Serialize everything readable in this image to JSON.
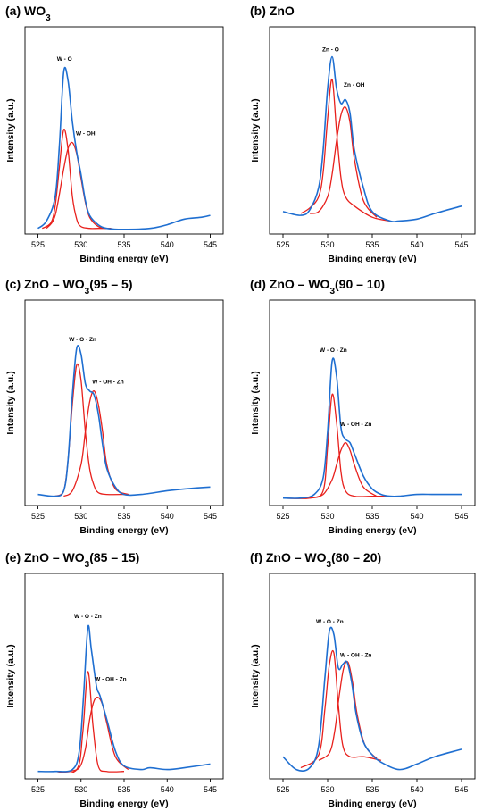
{
  "colors": {
    "envelope": "#1f6fd1",
    "component": "#e8201c",
    "axis": "#000000"
  },
  "chart_data": [
    {
      "type": "line",
      "title_main": "(a) WO",
      "title_sub": "3",
      "title_tail": "",
      "xlabel": "Binding energy (eV)",
      "ylabel": "Intensity (a.u.)",
      "xlim": [
        523.5,
        546.5
      ],
      "ylim": [
        0,
        1
      ],
      "xticks": [
        525,
        530,
        535,
        540,
        545
      ],
      "series": [
        {
          "color": "#1f6fd1",
          "x": [
            525,
            526,
            527,
            527.5,
            528,
            528.5,
            529,
            529.5,
            530,
            530.5,
            531,
            532,
            533,
            535,
            538,
            540,
            542,
            544,
            545
          ],
          "y": [
            0.03,
            0.07,
            0.2,
            0.48,
            0.87,
            0.82,
            0.6,
            0.44,
            0.32,
            0.18,
            0.1,
            0.05,
            0.03,
            0.025,
            0.03,
            0.05,
            0.08,
            0.09,
            0.1
          ]
        },
        {
          "color": "#e8201c",
          "x": [
            525.5,
            526.5,
            527,
            527.5,
            528,
            528.5,
            529,
            529.5,
            530,
            531,
            532,
            533.5
          ],
          "y": [
            0.03,
            0.06,
            0.15,
            0.36,
            0.56,
            0.45,
            0.2,
            0.08,
            0.04,
            0.03,
            0.03,
            0.03
          ]
        },
        {
          "color": "#e8201c",
          "x": [
            526,
            527,
            528,
            528.5,
            529,
            529.5,
            530,
            530.5,
            531,
            532,
            533
          ],
          "y": [
            0.03,
            0.1,
            0.35,
            0.46,
            0.49,
            0.43,
            0.3,
            0.17,
            0.09,
            0.04,
            0.03
          ]
        }
      ],
      "annotations": [
        {
          "text": "W - O",
          "x": 527.2,
          "y": 0.93
        },
        {
          "text": "W - OH",
          "x": 529.4,
          "y": 0.53
        }
      ]
    },
    {
      "type": "line",
      "title_main": "(b) ZnO",
      "title_sub": "",
      "title_tail": "",
      "xlabel": "Binding energy (eV)",
      "ylabel": "Intensity (a.u.)",
      "xlim": [
        523.5,
        546.5
      ],
      "ylim": [
        0,
        1
      ],
      "xticks": [
        525,
        530,
        535,
        540,
        545
      ],
      "series": [
        {
          "color": "#1f6fd1",
          "x": [
            525,
            527,
            528,
            529,
            529.5,
            530,
            530.5,
            531,
            531.5,
            532,
            532.5,
            533,
            534,
            535,
            537,
            538,
            540,
            542,
            545
          ],
          "y": [
            0.12,
            0.1,
            0.13,
            0.25,
            0.45,
            0.78,
            0.95,
            0.78,
            0.7,
            0.72,
            0.65,
            0.45,
            0.25,
            0.12,
            0.07,
            0.07,
            0.08,
            0.11,
            0.15
          ]
        },
        {
          "color": "#e8201c",
          "x": [
            527,
            528,
            529,
            529.5,
            530,
            530.5,
            531,
            531.5,
            532,
            533,
            535,
            537
          ],
          "y": [
            0.11,
            0.14,
            0.2,
            0.33,
            0.62,
            0.83,
            0.55,
            0.3,
            0.2,
            0.15,
            0.09,
            0.07
          ]
        },
        {
          "color": "#e8201c",
          "x": [
            528,
            529,
            530,
            530.5,
            531,
            531.5,
            532,
            532.5,
            533,
            534,
            535.5
          ],
          "y": [
            0.11,
            0.12,
            0.2,
            0.32,
            0.5,
            0.64,
            0.68,
            0.6,
            0.4,
            0.18,
            0.09
          ]
        }
      ],
      "annotations": [
        {
          "text": "Zn - O",
          "x": 529.4,
          "y": 0.98
        },
        {
          "text": "Zn - OH",
          "x": 531.8,
          "y": 0.79
        }
      ]
    },
    {
      "type": "line",
      "title_main": "(c) ZnO – WO",
      "title_sub": "3",
      "title_tail": "(95 – 5)",
      "xlabel": "Binding energy (eV)",
      "ylabel": "Intensity (a.u.)",
      "xlim": [
        523.5,
        546.5
      ],
      "ylim": [
        0,
        1
      ],
      "xticks": [
        525,
        530,
        535,
        540,
        545
      ],
      "series": [
        {
          "color": "#1f6fd1",
          "x": [
            525,
            527,
            528,
            528.5,
            529,
            529.5,
            530,
            530.5,
            531,
            531.5,
            532,
            532.5,
            533,
            534,
            535,
            537,
            540,
            542,
            545
          ],
          "y": [
            0.06,
            0.05,
            0.08,
            0.25,
            0.6,
            0.85,
            0.82,
            0.66,
            0.62,
            0.6,
            0.5,
            0.33,
            0.2,
            0.1,
            0.06,
            0.06,
            0.08,
            0.09,
            0.1
          ]
        },
        {
          "color": "#e8201c",
          "x": [
            527,
            528,
            528.5,
            529,
            529.5,
            530,
            530.5,
            531,
            531.5,
            532,
            533,
            535
          ],
          "y": [
            0.05,
            0.08,
            0.25,
            0.55,
            0.76,
            0.68,
            0.4,
            0.2,
            0.11,
            0.07,
            0.06,
            0.06
          ]
        },
        {
          "color": "#e8201c",
          "x": [
            528,
            529,
            530,
            530.5,
            531,
            531.5,
            532,
            532.5,
            533,
            534,
            535.5
          ],
          "y": [
            0.05,
            0.08,
            0.22,
            0.4,
            0.56,
            0.62,
            0.55,
            0.4,
            0.22,
            0.09,
            0.06
          ]
        }
      ],
      "annotations": [
        {
          "text": "W - O - Zn",
          "x": 528.6,
          "y": 0.89
        },
        {
          "text": "W - OH - Zn",
          "x": 531.3,
          "y": 0.66
        }
      ]
    },
    {
      "type": "line",
      "title_main": "(d) ZnO – WO",
      "title_sub": "3",
      "title_tail": "(90 – 10)",
      "xlabel": "Binding energy (eV)",
      "ylabel": "Intensity (a.u.)",
      "xlim": [
        523.5,
        546.5
      ],
      "ylim": [
        0,
        1
      ],
      "xticks": [
        525,
        530,
        535,
        540,
        545
      ],
      "series": [
        {
          "color": "#1f6fd1",
          "x": [
            525,
            527,
            528.5,
            529.5,
            530,
            530.5,
            531,
            531.5,
            532,
            532.5,
            533,
            534,
            535,
            536,
            537,
            538,
            540,
            542,
            545
          ],
          "y": [
            0.04,
            0.04,
            0.06,
            0.15,
            0.4,
            0.78,
            0.7,
            0.42,
            0.36,
            0.34,
            0.28,
            0.16,
            0.09,
            0.06,
            0.05,
            0.05,
            0.06,
            0.06,
            0.06
          ]
        },
        {
          "color": "#e8201c",
          "x": [
            525,
            528,
            529.5,
            530,
            530.5,
            531,
            531.5,
            532,
            533,
            535,
            537
          ],
          "y": [
            0.04,
            0.04,
            0.08,
            0.32,
            0.6,
            0.45,
            0.18,
            0.08,
            0.05,
            0.05,
            0.05
          ]
        },
        {
          "color": "#e8201c",
          "x": [
            528,
            529.5,
            530.5,
            531,
            531.5,
            532,
            532.5,
            533,
            534,
            535.5
          ],
          "y": [
            0.04,
            0.06,
            0.14,
            0.22,
            0.3,
            0.34,
            0.3,
            0.22,
            0.1,
            0.05
          ]
        }
      ],
      "annotations": [
        {
          "text": "W - O - Zn",
          "x": 529.1,
          "y": 0.83
        },
        {
          "text": "W - OH - Zn",
          "x": 531.4,
          "y": 0.43
        }
      ]
    },
    {
      "type": "line",
      "title_main": "(e) ZnO – WO",
      "title_sub": "3",
      "title_tail": "(85 – 15)",
      "xlabel": "Binding energy (eV)",
      "ylabel": "Intensity (a.u.)",
      "xlim": [
        523.5,
        546.5
      ],
      "ylim": [
        0,
        1
      ],
      "xticks": [
        525,
        530,
        535,
        540,
        545
      ],
      "series": [
        {
          "color": "#1f6fd1",
          "x": [
            525,
            527,
            529,
            529.8,
            530.3,
            530.8,
            531.2,
            531.8,
            532.2,
            533,
            534,
            535,
            537,
            538,
            540,
            542,
            545
          ],
          "y": [
            0.04,
            0.04,
            0.05,
            0.15,
            0.45,
            0.82,
            0.7,
            0.5,
            0.45,
            0.32,
            0.15,
            0.07,
            0.05,
            0.06,
            0.05,
            0.06,
            0.08
          ]
        },
        {
          "color": "#e8201c",
          "x": [
            527,
            529.5,
            530.2,
            530.8,
            531.4,
            532,
            533,
            535
          ],
          "y": [
            0.04,
            0.05,
            0.25,
            0.58,
            0.28,
            0.07,
            0.04,
            0.04
          ]
        },
        {
          "color": "#e8201c",
          "x": [
            528.5,
            529.8,
            530.5,
            531,
            531.5,
            532,
            532.5,
            533,
            534,
            535.5
          ],
          "y": [
            0.04,
            0.06,
            0.16,
            0.32,
            0.42,
            0.44,
            0.4,
            0.3,
            0.12,
            0.05
          ]
        }
      ],
      "annotations": [
        {
          "text": "W - O - Zn",
          "x": 529.2,
          "y": 0.87
        },
        {
          "text": "W - OH - Zn",
          "x": 531.6,
          "y": 0.53
        }
      ]
    },
    {
      "type": "line",
      "title_main": "(f) ZnO – WO",
      "title_sub": "3",
      "title_tail": "(80 – 20)",
      "xlabel": "Binding energy (eV)",
      "ylabel": "Intensity (a.u.)",
      "xlim": [
        523.5,
        546.5
      ],
      "ylim": [
        0,
        1
      ],
      "xticks": [
        525,
        530,
        535,
        540,
        545
      ],
      "series": [
        {
          "color": "#1f6fd1",
          "x": [
            525,
            526.5,
            528,
            529,
            529.7,
            530.2,
            530.7,
            531.2,
            531.7,
            532.2,
            532.7,
            533.2,
            534,
            535,
            536,
            538,
            540,
            542,
            545
          ],
          "y": [
            0.12,
            0.05,
            0.06,
            0.18,
            0.55,
            0.8,
            0.78,
            0.6,
            0.62,
            0.63,
            0.52,
            0.35,
            0.2,
            0.13,
            0.09,
            0.05,
            0.08,
            0.12,
            0.16
          ]
        },
        {
          "color": "#e8201c",
          "x": [
            527,
            529,
            529.7,
            530.2,
            530.7,
            531.2,
            531.7,
            532.5,
            534,
            536
          ],
          "y": [
            0.06,
            0.13,
            0.38,
            0.62,
            0.68,
            0.4,
            0.18,
            0.12,
            0.12,
            0.1
          ]
        },
        {
          "color": "#e8201c",
          "x": [
            529,
            530.2,
            530.8,
            531.3,
            531.8,
            532.3,
            532.8,
            533.3,
            534.2,
            535.5
          ],
          "y": [
            0.1,
            0.14,
            0.26,
            0.45,
            0.6,
            0.63,
            0.52,
            0.35,
            0.18,
            0.11
          ]
        }
      ],
      "annotations": [
        {
          "text": "W - O - Zn",
          "x": 528.7,
          "y": 0.84
        },
        {
          "text": "W - OH - Zn",
          "x": 531.4,
          "y": 0.66
        }
      ]
    }
  ]
}
